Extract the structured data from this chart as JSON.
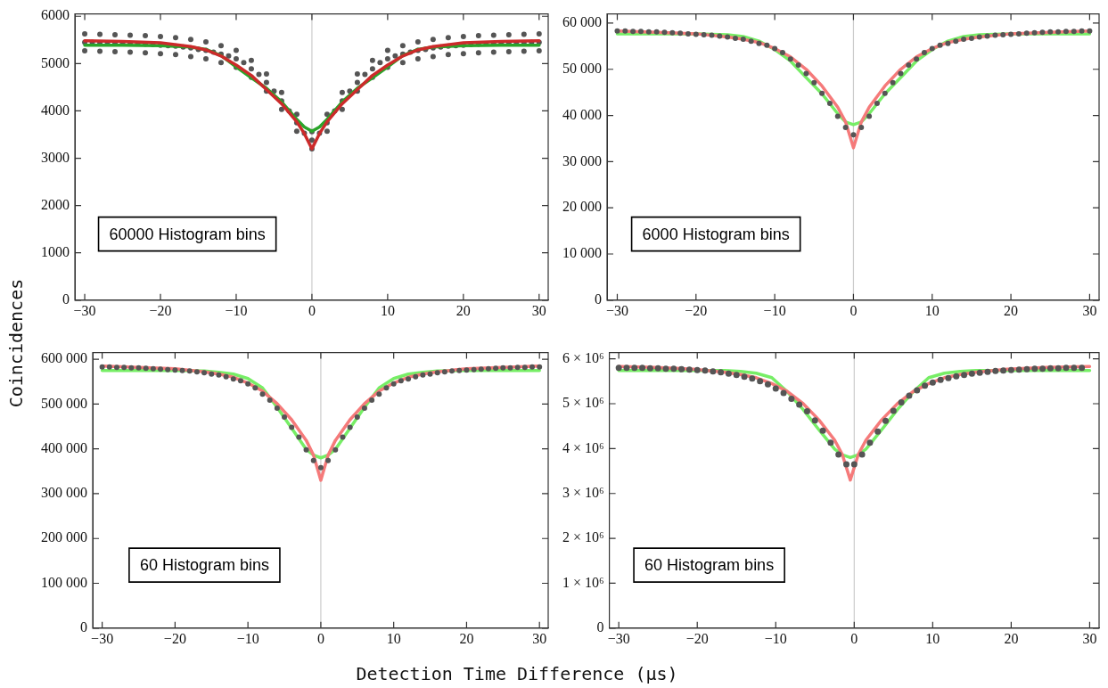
{
  "chart_data": [
    {
      "type": "scatter",
      "ylabel": "Coincidences",
      "xlim": [
        -31.3,
        31.2
      ],
      "ylim": [
        0,
        6050
      ],
      "xticks": [
        {
          "value": -30,
          "label": "−30"
        },
        {
          "value": -20,
          "label": "−20"
        },
        {
          "value": -10,
          "label": "−10"
        },
        0,
        10,
        20,
        30
      ],
      "yticks": [
        0,
        1000,
        2000,
        3000,
        4000,
        5000,
        6000
      ],
      "line_style": "solid",
      "ref_lines": [
        {
          "axis": "x",
          "value": 0,
          "color": "#cccccc"
        }
      ],
      "annotations": [
        "60000 Histogram bins"
      ],
      "series": [
        {
          "type": "scatter",
          "marker": "circle",
          "color": "#555555",
          "x": [
            -30,
            -29,
            -28,
            -27,
            -26,
            -25,
            -24,
            -23,
            -22,
            -21,
            -20,
            -19,
            -18,
            -17,
            -16,
            -15,
            -14,
            -13,
            -12,
            -11,
            -10,
            -9,
            -8,
            -7,
            -6,
            -5,
            -4,
            -3,
            -2,
            -1,
            0,
            1,
            2,
            3,
            4,
            5,
            6,
            7,
            8,
            9,
            10,
            11,
            12,
            13,
            14,
            15,
            16,
            17,
            18,
            19,
            20,
            21,
            22,
            23,
            24,
            25,
            26,
            27,
            28,
            29,
            30,
            -30,
            -28,
            -26,
            -24,
            -22,
            -20,
            -18,
            -16,
            -14,
            -12,
            -10,
            -8,
            -6,
            -4,
            -2,
            0,
            2,
            4,
            6,
            8,
            10,
            12,
            14,
            16,
            18,
            20,
            22,
            24,
            26,
            28,
            30,
            -30,
            -28,
            -26,
            -24,
            -22,
            -20,
            -18,
            -16,
            -14,
            -12,
            -10,
            -8,
            -6,
            -4,
            -2,
            0,
            2,
            4,
            6,
            8,
            10,
            12,
            14,
            16,
            18,
            20,
            22,
            24,
            26,
            28,
            30
          ],
          "values": [
            5450,
            5450,
            5440,
            5440,
            5430,
            5430,
            5420,
            5420,
            5410,
            5400,
            5390,
            5380,
            5370,
            5350,
            5330,
            5300,
            5280,
            5240,
            5200,
            5160,
            5100,
            5020,
            4890,
            4770,
            4600,
            4420,
            4210,
            4000,
            3750,
            3530,
            3380,
            3530,
            3750,
            4000,
            4210,
            4420,
            4600,
            4770,
            4890,
            5020,
            5100,
            5160,
            5200,
            5240,
            5280,
            5300,
            5330,
            5350,
            5370,
            5380,
            5390,
            5400,
            5410,
            5420,
            5420,
            5430,
            5430,
            5440,
            5440,
            5450,
            5450,
            5630,
            5620,
            5610,
            5600,
            5590,
            5570,
            5550,
            5510,
            5460,
            5380,
            5280,
            5070,
            4780,
            4390,
            3930,
            3560,
            3930,
            4390,
            4780,
            5070,
            5280,
            5380,
            5460,
            5510,
            5550,
            5570,
            5590,
            5600,
            5610,
            5620,
            5630,
            5270,
            5260,
            5250,
            5240,
            5230,
            5210,
            5190,
            5150,
            5100,
            5020,
            4920,
            4710,
            4420,
            4030,
            3570,
            3200,
            3570,
            4030,
            4420,
            4710,
            4920,
            5020,
            5100,
            5150,
            5190,
            5210,
            5230,
            5240,
            5250,
            5260,
            5270
          ]
        },
        {
          "type": "line",
          "color": "#2aa52a",
          "x": [
            -30,
            -25,
            -20,
            -16,
            -14,
            -12,
            -10,
            -8,
            -6,
            -4,
            -2,
            -1,
            0,
            1,
            2,
            4,
            6,
            8,
            10,
            12,
            14,
            16,
            20,
            25,
            30
          ],
          "values": [
            5390,
            5390,
            5380,
            5350,
            5300,
            5170,
            4930,
            4700,
            4480,
            4190,
            3820,
            3660,
            3570,
            3660,
            3820,
            4190,
            4480,
            4700,
            4930,
            5170,
            5300,
            5350,
            5380,
            5390,
            5390
          ]
        },
        {
          "type": "line",
          "color": "#cc2a2a",
          "x": [
            -30,
            -25,
            -20,
            -16,
            -14,
            -12,
            -10,
            -8,
            -6,
            -4,
            -2,
            -1,
            0,
            1,
            2,
            4,
            6,
            8,
            10,
            12,
            14,
            16,
            20,
            25,
            30
          ],
          "values": [
            5480,
            5470,
            5440,
            5360,
            5290,
            5160,
            4970,
            4750,
            4450,
            4150,
            3770,
            3520,
            3200,
            3520,
            3770,
            4150,
            4450,
            4750,
            4970,
            5160,
            5290,
            5360,
            5440,
            5470,
            5480
          ]
        }
      ]
    },
    {
      "type": "scatter",
      "xlim": [
        -31.3,
        31.2
      ],
      "ylim": [
        0,
        62000
      ],
      "xticks": [
        {
          "value": -30,
          "label": "−30"
        },
        {
          "value": -20,
          "label": "−20"
        },
        {
          "value": -10,
          "label": "−10"
        },
        0,
        10,
        20,
        30
      ],
      "yticks": [
        0,
        {
          "value": 10000,
          "label": "10 000"
        },
        {
          "value": 20000,
          "label": "20 000"
        },
        {
          "value": 30000,
          "label": "30 000"
        },
        {
          "value": 40000,
          "label": "40 000"
        },
        {
          "value": 50000,
          "label": "50 000"
        },
        {
          "value": 60000,
          "label": "60 000"
        }
      ],
      "line_style": "solid",
      "ref_lines": [
        {
          "axis": "x",
          "value": 0,
          "color": "#cccccc"
        }
      ],
      "annotations": [
        "6000 Histogram bins"
      ],
      "series": [
        {
          "type": "line",
          "color": "#77ee66",
          "x": [
            -30,
            -25,
            -20,
            -16,
            -14,
            -12,
            -10,
            -8,
            -6,
            -4,
            -2,
            -1,
            0,
            1,
            2,
            4,
            6,
            8,
            10,
            12,
            14,
            16,
            20,
            25,
            30
          ],
          "values": [
            57700,
            57700,
            57700,
            57500,
            57100,
            56100,
            54300,
            51800,
            48200,
            44700,
            40400,
            38600,
            38000,
            38600,
            40400,
            44700,
            48200,
            51800,
            54300,
            56100,
            57100,
            57500,
            57700,
            57700,
            57700
          ]
        },
        {
          "type": "line",
          "color": "#f57a7a",
          "x": [
            -30,
            -25,
            -20,
            -16,
            -14,
            -12,
            -10,
            -8,
            -6,
            -4,
            -2,
            -1,
            0,
            1,
            2,
            4,
            6,
            8,
            10,
            12,
            14,
            16,
            20,
            25,
            30
          ],
          "values": [
            58300,
            58000,
            57700,
            57000,
            56500,
            55800,
            54500,
            52700,
            50000,
            46400,
            41800,
            38600,
            33000,
            38600,
            41800,
            46400,
            50000,
            52700,
            54500,
            55800,
            56500,
            57000,
            57700,
            58000,
            58300
          ]
        },
        {
          "type": "scatter",
          "marker": "circle",
          "color": "#555555",
          "x": [
            -30,
            -29,
            -28,
            -27,
            -26,
            -25,
            -24,
            -23,
            -22,
            -21,
            -20,
            -19,
            -18,
            -17,
            -16,
            -15,
            -14,
            -13,
            -12,
            -11,
            -10,
            -9,
            -8,
            -7,
            -6,
            -5,
            -4,
            -3,
            -2,
            -1,
            0,
            1,
            2,
            3,
            4,
            5,
            6,
            7,
            8,
            9,
            10,
            11,
            12,
            13,
            14,
            15,
            16,
            17,
            18,
            19,
            20,
            21,
            22,
            23,
            24,
            25,
            26,
            27,
            28,
            29,
            30
          ],
          "values": [
            58300,
            58300,
            58200,
            58200,
            58100,
            58100,
            58000,
            57900,
            57800,
            57700,
            57600,
            57500,
            57400,
            57200,
            57000,
            56700,
            56500,
            56100,
            55600,
            55200,
            54500,
            53600,
            52200,
            50900,
            49100,
            47100,
            44800,
            42600,
            39800,
            37400,
            35800,
            37400,
            39800,
            42600,
            44800,
            47100,
            49100,
            50900,
            52200,
            53600,
            54500,
            55200,
            55600,
            56100,
            56500,
            56700,
            57000,
            57200,
            57400,
            57500,
            57600,
            57700,
            57800,
            57900,
            58000,
            58100,
            58100,
            58200,
            58200,
            58300,
            58300
          ]
        }
      ]
    },
    {
      "type": "scatter",
      "xlabel": "Detection Time Difference (μs)",
      "xlim": [
        -31.3,
        31.2
      ],
      "ylim": [
        0,
        615000
      ],
      "xticks": [
        {
          "value": -30,
          "label": "−30"
        },
        {
          "value": -20,
          "label": "−20"
        },
        {
          "value": -10,
          "label": "−10"
        },
        0,
        10,
        20,
        30
      ],
      "yticks": [
        0,
        {
          "value": 100000,
          "label": "100 000"
        },
        {
          "value": 200000,
          "label": "200 000"
        },
        {
          "value": 300000,
          "label": "300 000"
        },
        {
          "value": 400000,
          "label": "400 000"
        },
        {
          "value": 500000,
          "label": "500 000"
        },
        {
          "value": 600000,
          "label": "600 000"
        }
      ],
      "line_style": "solid",
      "ref_lines": [
        {
          "axis": "x",
          "value": 0,
          "color": "#cccccc"
        }
      ],
      "annotations": [
        "60 Histogram bins"
      ],
      "series": [
        {
          "type": "line",
          "color": "#77ee66",
          "x": [
            -30,
            -25,
            -20,
            -16,
            -14,
            -12,
            -10,
            -8,
            -6,
            -4,
            -2,
            -1,
            0,
            1,
            2,
            4,
            6,
            8,
            10,
            12,
            14,
            16,
            20,
            25,
            30
          ],
          "values": [
            575000,
            575000,
            575000,
            574000,
            571000,
            567000,
            557000,
            536000,
            493000,
            446000,
            399000,
            386000,
            380000,
            386000,
            399000,
            446000,
            493000,
            536000,
            557000,
            567000,
            571000,
            574000,
            575000,
            575000,
            575000
          ]
        },
        {
          "type": "line",
          "color": "#f57a7a",
          "x": [
            -30,
            -25,
            -20,
            -16,
            -14,
            -12,
            -10,
            -8,
            -6,
            -4,
            -2,
            -1,
            0,
            1,
            2,
            4,
            6,
            8,
            10,
            12,
            14,
            16,
            20,
            25,
            30
          ],
          "values": [
            585000,
            582000,
            579000,
            572000,
            567000,
            560000,
            547000,
            529000,
            501000,
            465000,
            419000,
            386000,
            330000,
            386000,
            419000,
            465000,
            501000,
            529000,
            547000,
            560000,
            567000,
            572000,
            579000,
            582000,
            585000
          ]
        },
        {
          "type": "scatter",
          "marker": "circle",
          "color": "#555555",
          "x": [
            -30,
            -29,
            -28,
            -27,
            -26,
            -25,
            -24,
            -23,
            -22,
            -21,
            -20,
            -19,
            -18,
            -17,
            -16,
            -15,
            -14,
            -13,
            -12,
            -11,
            -10,
            -9,
            -8,
            -7,
            -6,
            -5,
            -4,
            -3,
            -2,
            -1,
            0,
            1,
            2,
            3,
            4,
            5,
            6,
            7,
            8,
            9,
            10,
            11,
            12,
            13,
            14,
            15,
            16,
            17,
            18,
            19,
            20,
            21,
            22,
            23,
            24,
            25,
            26,
            27,
            28,
            29,
            30
          ],
          "values": [
            583000,
            583000,
            582000,
            582000,
            581000,
            581000,
            580000,
            579000,
            578000,
            577000,
            576000,
            575000,
            574000,
            572000,
            570000,
            567000,
            565000,
            561000,
            556000,
            552000,
            545000,
            536000,
            522000,
            509000,
            491000,
            471000,
            448000,
            426000,
            398000,
            374000,
            358000,
            374000,
            398000,
            426000,
            448000,
            471000,
            491000,
            509000,
            522000,
            536000,
            545000,
            552000,
            556000,
            561000,
            565000,
            567000,
            570000,
            572000,
            574000,
            575000,
            576000,
            577000,
            578000,
            579000,
            580000,
            581000,
            581000,
            582000,
            582000,
            583000,
            583000
          ]
        }
      ]
    },
    {
      "type": "scatter",
      "xlim": [
        -31.2,
        31.2
      ],
      "ylim": [
        0,
        6140000
      ],
      "xticks": [
        {
          "value": -30,
          "label": "−30"
        },
        {
          "value": -20,
          "label": "−20"
        },
        {
          "value": -10,
          "label": "−10"
        },
        0,
        10,
        20,
        30
      ],
      "yticks": [
        0,
        {
          "value": 1000000,
          "label": "1 × 10⁶"
        },
        {
          "value": 2000000,
          "label": "2 × 10⁶"
        },
        {
          "value": 3000000,
          "label": "3 × 10⁶"
        },
        {
          "value": 4000000,
          "label": "4 × 10⁶"
        },
        {
          "value": 5000000,
          "label": "5 × 10⁶"
        },
        {
          "value": 6000000,
          "label": "6 × 10⁶"
        }
      ],
      "line_style": "solid",
      "ref_lines": [
        {
          "axis": "x",
          "value": 0,
          "color": "#cccccc"
        }
      ],
      "annotations": [
        "60 Histogram bins"
      ],
      "series": [
        {
          "type": "line",
          "color": "#77ee66",
          "x": [
            -30,
            -25.5,
            -20.5,
            -16.5,
            -14.5,
            -12.5,
            -10.5,
            -8.5,
            -6.5,
            -4.5,
            -2.5,
            -1.5,
            -0.5,
            0.5,
            1.5,
            3.5,
            5.5,
            7.5,
            9.5,
            11.5,
            13.5,
            15.5,
            19.5,
            24.5,
            30
          ],
          "values": [
            5740000,
            5740000,
            5740000,
            5740000,
            5720000,
            5680000,
            5580000,
            5260000,
            4870000,
            4420000,
            3990000,
            3860000,
            3800000,
            3860000,
            3990000,
            4420000,
            4870000,
            5260000,
            5580000,
            5680000,
            5720000,
            5740000,
            5740000,
            5740000,
            5740000
          ]
        },
        {
          "type": "line",
          "color": "#f57a7a",
          "x": [
            -30,
            -25.5,
            -20.5,
            -16.5,
            -14.5,
            -12.5,
            -10.5,
            -8.5,
            -6.5,
            -4.5,
            -2.5,
            -1.5,
            -0.5,
            0.5,
            1.5,
            3.5,
            5.5,
            7.5,
            9.5,
            11.5,
            13.5,
            15.5,
            19.5,
            24.5,
            30
          ],
          "values": [
            5830000,
            5810000,
            5770000,
            5700000,
            5650000,
            5580000,
            5450000,
            5270000,
            5000000,
            4640000,
            4190000,
            3860000,
            3300000,
            3860000,
            4190000,
            4640000,
            5000000,
            5270000,
            5450000,
            5580000,
            5650000,
            5700000,
            5770000,
            5810000,
            5830000
          ]
        },
        {
          "type": "scatter",
          "marker": "circle",
          "color": "#555555",
          "x": [
            -30,
            -29,
            -28,
            -27,
            -26,
            -25,
            -24,
            -23,
            -22,
            -21,
            -20,
            -19,
            -18,
            -17,
            -16,
            -15,
            -14,
            -13,
            -12,
            -11,
            -10,
            -9,
            -8,
            -7,
            -6,
            -5,
            -4,
            -3,
            -2,
            -1,
            0,
            1,
            2,
            3,
            4,
            5,
            6,
            7,
            8,
            9,
            10,
            11,
            12,
            13,
            14,
            15,
            16,
            17,
            18,
            19,
            20,
            21,
            22,
            23,
            24,
            25,
            26,
            27,
            28,
            29
          ],
          "values": [
            5800000,
            5800000,
            5800000,
            5800000,
            5790000,
            5790000,
            5780000,
            5780000,
            5770000,
            5760000,
            5750000,
            5740000,
            5720000,
            5700000,
            5670000,
            5640000,
            5600000,
            5560000,
            5500000,
            5430000,
            5340000,
            5240000,
            5110000,
            4980000,
            4830000,
            4630000,
            4400000,
            4130000,
            3870000,
            3650000,
            3650000,
            3870000,
            4130000,
            4380000,
            4620000,
            4840000,
            5030000,
            5180000,
            5300000,
            5400000,
            5470000,
            5530000,
            5570000,
            5610000,
            5640000,
            5670000,
            5690000,
            5710000,
            5730000,
            5740000,
            5750000,
            5760000,
            5770000,
            5780000,
            5780000,
            5790000,
            5790000,
            5800000,
            5800000,
            5800000
          ]
        }
      ]
    }
  ]
}
